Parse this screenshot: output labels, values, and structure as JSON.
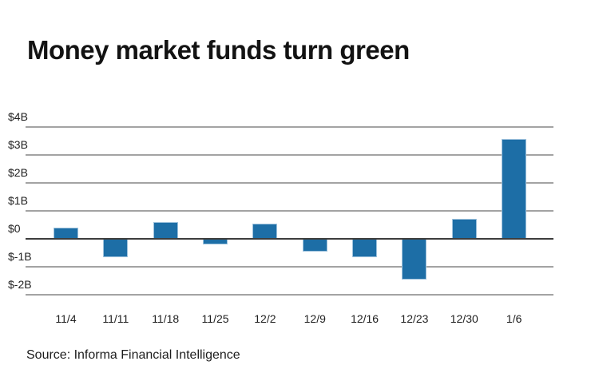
{
  "page": {
    "background": "#ffffff"
  },
  "chart_data": {
    "type": "bar",
    "title": "Money market funds turn green",
    "categories": [
      "11/4",
      "11/11",
      "11/18",
      "11/25",
      "12/2",
      "12/9",
      "12/16",
      "12/23",
      "12/30",
      "1/6"
    ],
    "values": [
      0.4,
      -0.65,
      0.6,
      -0.2,
      0.55,
      -0.45,
      -0.65,
      -1.45,
      0.7,
      3.55
    ],
    "value_unit": "billions of dollars",
    "y_ticks": [
      {
        "label": "$4B",
        "value": 4
      },
      {
        "label": "$3B",
        "value": 3
      },
      {
        "label": "$2B",
        "value": 2
      },
      {
        "label": "$1B",
        "value": 1
      },
      {
        "label": "$0",
        "value": 0
      },
      {
        "label": "$-1B",
        "value": -1
      },
      {
        "label": "$-2B",
        "value": -2
      }
    ],
    "ylim": [
      -2.6,
      4.6
    ],
    "grid": true,
    "legend": false,
    "xlabel": "",
    "ylabel": "",
    "bar_color": "#1d6ea6",
    "bar_edge_color": "#c8deee",
    "gridline_color": "#a3a3a3",
    "zero_line_color": "#3d3d3d",
    "source": "Source: Informa Financial Intelligence"
  }
}
